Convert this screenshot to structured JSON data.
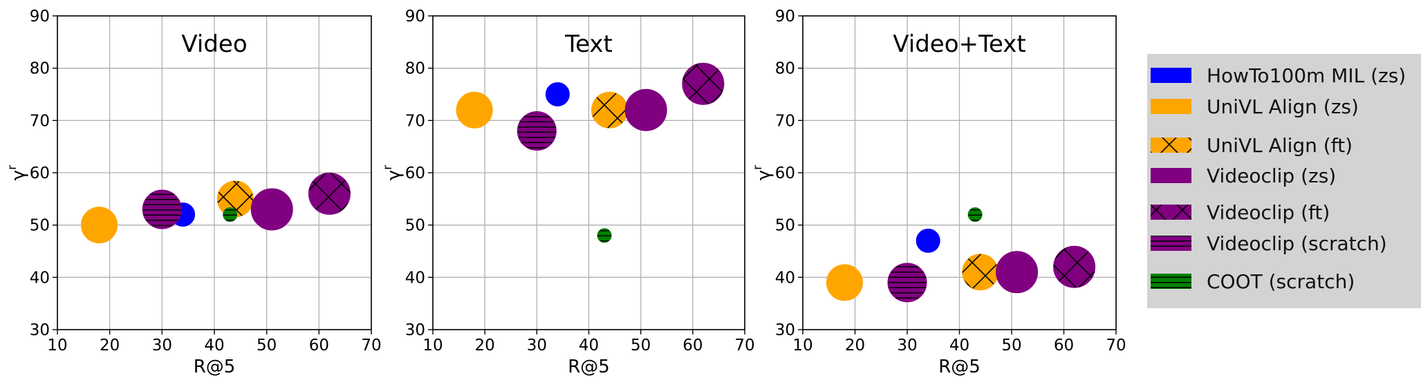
{
  "chart_data": [
    {
      "type": "scatter",
      "title": "Video",
      "xlabel": "R@5",
      "ylabel": "γ^r",
      "xlim": [
        10,
        70
      ],
      "ylim": [
        30,
        90
      ],
      "xticks": [
        "10",
        "20",
        "30",
        "40",
        "50",
        "60",
        "70"
      ],
      "yticks": [
        "30",
        "40",
        "50",
        "60",
        "70",
        "80",
        "90"
      ],
      "grid": true,
      "series": [
        {
          "name": "HowTo100m MIL (zs)",
          "x": 34,
          "y": 52
        },
        {
          "name": "UniVL Align (zs)",
          "x": 18,
          "y": 50
        },
        {
          "name": "UniVL Align (ft)",
          "x": 44,
          "y": 55
        },
        {
          "name": "Videoclip (zs)",
          "x": 51,
          "y": 53
        },
        {
          "name": "Videoclip (ft)",
          "x": 62,
          "y": 56
        },
        {
          "name": "Videoclip (scratch)",
          "x": 30,
          "y": 53
        },
        {
          "name": "COOT (scratch)",
          "x": 43,
          "y": 52
        }
      ]
    },
    {
      "type": "scatter",
      "title": "Text",
      "xlabel": "R@5",
      "ylabel": "γ^r",
      "xlim": [
        10,
        70
      ],
      "ylim": [
        30,
        90
      ],
      "xticks": [
        "10",
        "20",
        "30",
        "40",
        "50",
        "60",
        "70"
      ],
      "yticks": [
        "30",
        "40",
        "50",
        "60",
        "70",
        "80",
        "90"
      ],
      "grid": true,
      "series": [
        {
          "name": "HowTo100m MIL (zs)",
          "x": 34,
          "y": 75
        },
        {
          "name": "UniVL Align (zs)",
          "x": 18,
          "y": 72
        },
        {
          "name": "UniVL Align (ft)",
          "x": 44,
          "y": 72
        },
        {
          "name": "Videoclip (zs)",
          "x": 51,
          "y": 72
        },
        {
          "name": "Videoclip (ft)",
          "x": 62,
          "y": 77
        },
        {
          "name": "Videoclip (scratch)",
          "x": 30,
          "y": 68
        },
        {
          "name": "COOT (scratch)",
          "x": 43,
          "y": 48
        }
      ]
    },
    {
      "type": "scatter",
      "title": "Video+Text",
      "xlabel": "R@5",
      "ylabel": "γ^r",
      "xlim": [
        10,
        70
      ],
      "ylim": [
        30,
        90
      ],
      "xticks": [
        "10",
        "20",
        "30",
        "40",
        "50",
        "60",
        "70"
      ],
      "yticks": [
        "30",
        "40",
        "50",
        "60",
        "70",
        "80",
        "90"
      ],
      "grid": true,
      "series": [
        {
          "name": "HowTo100m MIL (zs)",
          "x": 34,
          "y": 47
        },
        {
          "name": "UniVL Align (zs)",
          "x": 18,
          "y": 39
        },
        {
          "name": "UniVL Align (ft)",
          "x": 44,
          "y": 41
        },
        {
          "name": "Videoclip (zs)",
          "x": 51,
          "y": 41
        },
        {
          "name": "Videoclip (ft)",
          "x": 62,
          "y": 42
        },
        {
          "name": "Videoclip (scratch)",
          "x": 30,
          "y": 39
        },
        {
          "name": "COOT (scratch)",
          "x": 43,
          "y": 52
        }
      ]
    }
  ],
  "legend": {
    "placement": "right",
    "background": "#d3d3d3",
    "items": [
      {
        "label": "HowTo100m MIL (zs)",
        "color": "#0000ff",
        "hatch": "none"
      },
      {
        "label": "UniVL Align (zs)",
        "color": "#ffa500",
        "hatch": "none"
      },
      {
        "label": "UniVL Align (ft)",
        "color": "#ffa500",
        "hatch": "cross"
      },
      {
        "label": "Videoclip (zs)",
        "color": "#800080",
        "hatch": "none"
      },
      {
        "label": "Videoclip (ft)",
        "color": "#800080",
        "hatch": "cross"
      },
      {
        "label": "Videoclip (scratch)",
        "color": "#800080",
        "hatch": "horizontal"
      },
      {
        "label": "COOT (scratch)",
        "color": "#008000",
        "hatch": "horizontal"
      }
    ]
  }
}
